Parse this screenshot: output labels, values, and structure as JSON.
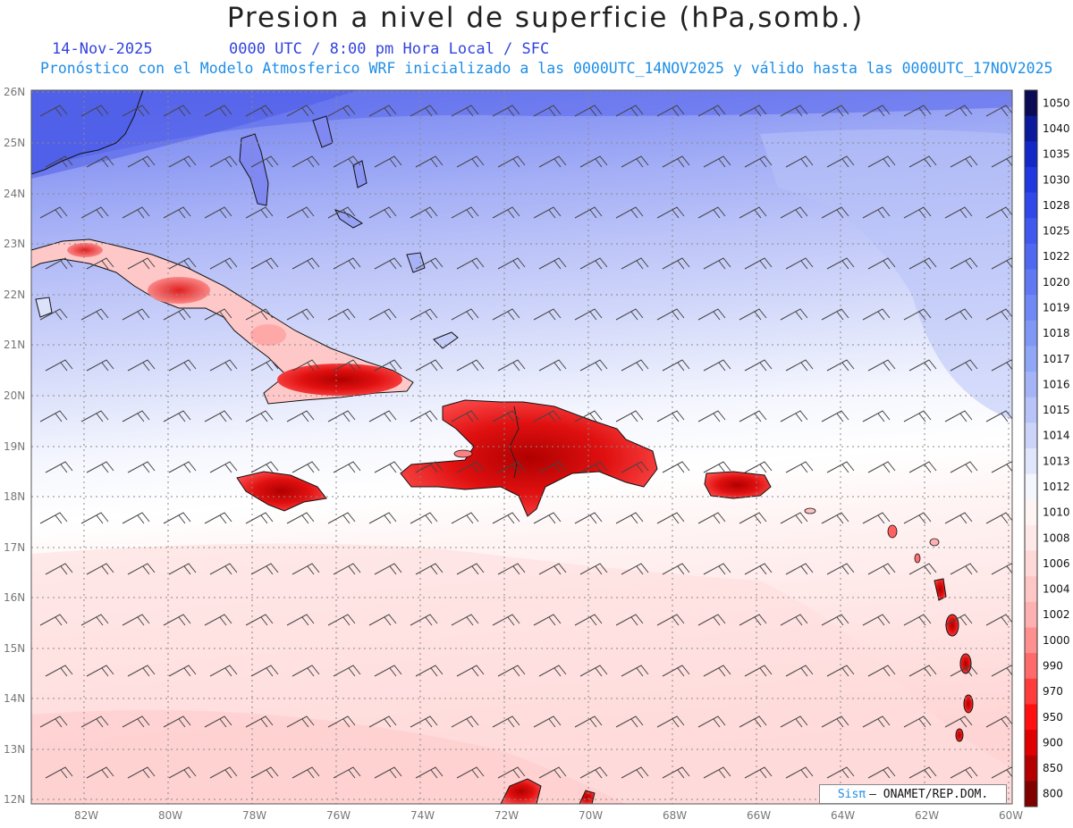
{
  "title": "Presion a nivel de superficie (hPa,somb.)",
  "date": "14-Nov-2025",
  "valid_time": "0000 UTC / 8:00 pm Hora Local / SFC",
  "subtitle": "Pronóstico con el Modelo Atmosferico WRF inicializado a las 0000UTC_14NOV2025 y válido hasta las  0000UTC_17NOV2025",
  "lat_labels": [
    "26N",
    "25N",
    "24N",
    "23N",
    "22N",
    "21N",
    "20N",
    "19N",
    "18N",
    "17N",
    "16N",
    "15N",
    "14N",
    "13N",
    "12N"
  ],
  "lon_labels": [
    "82W",
    "80W",
    "78W",
    "76W",
    "74W",
    "72W",
    "70W",
    "68W",
    "66W",
    "64W",
    "62W",
    "60W"
  ],
  "colorbar": {
    "labels": [
      "1050",
      "1040",
      "1035",
      "1030",
      "1028",
      "1025",
      "1022",
      "1020",
      "1019",
      "1018",
      "1017",
      "1016",
      "1015",
      "1014",
      "1013",
      "1012",
      "1010",
      "1008",
      "1006",
      "1004",
      "1002",
      "1000",
      "990",
      "970",
      "950",
      "900",
      "850",
      "800"
    ],
    "colors": [
      "#0a0a55",
      "#0b1a9a",
      "#1428c8",
      "#2038e0",
      "#3048ea",
      "#4058ee",
      "#5068f0",
      "#6078f2",
      "#7088f4",
      "#8098f5",
      "#90a6f6",
      "#a4b4f7",
      "#b8c4f8",
      "#ccd4fa",
      "#e0e6fb",
      "#f4f6fe",
      "#fff4f4",
      "#ffe8e8",
      "#ffd8d8",
      "#ffc6c6",
      "#ffb0b0",
      "#ff9090",
      "#ff6a6a",
      "#ff3c3c",
      "#ff1010",
      "#e00000",
      "#b40000",
      "#800000"
    ]
  },
  "credit": {
    "brand": "Sisπ",
    "text": "– ONAMET/REP.DOM."
  },
  "colors": {
    "title": "#222222",
    "date": "#3344dd",
    "subtitle": "#1e8ee6"
  }
}
